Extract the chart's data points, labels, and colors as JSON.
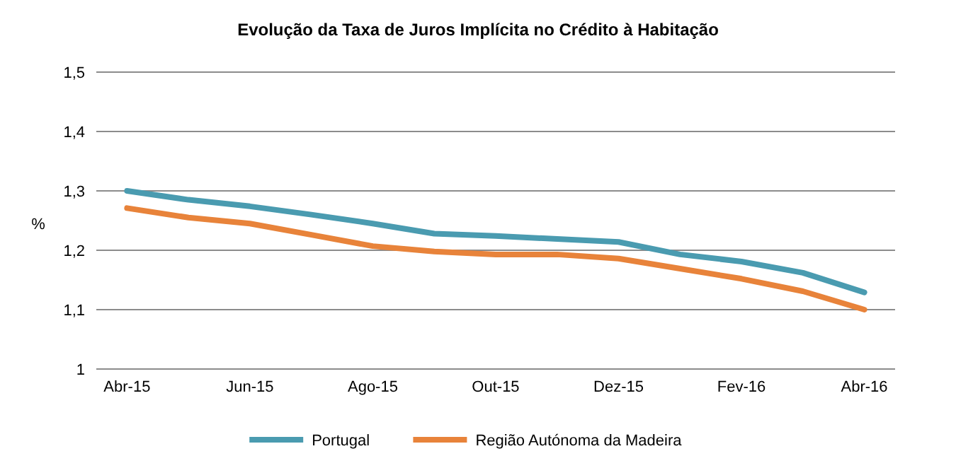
{
  "chart_data": {
    "type": "line",
    "title": "Evolução da Taxa de Juros Implícita no Crédito à Habitação",
    "ylabel": "%",
    "categories": [
      "Abr-15",
      null,
      "Jun-15",
      null,
      "Ago-15",
      null,
      "Out-15",
      null,
      "Dez-15",
      null,
      "Fev-16",
      null,
      "Abr-16"
    ],
    "series": [
      {
        "name": "Portugal",
        "color": "#4a9bb0",
        "values": [
          1.3,
          1.285,
          1.274,
          1.26,
          1.245,
          1.228,
          1.224,
          1.219,
          1.214,
          1.193,
          1.181,
          1.162,
          1.129
        ]
      },
      {
        "name": "Região Autónoma da Madeira",
        "color": "#e8833a",
        "values": [
          1.271,
          1.255,
          1.245,
          1.226,
          1.207,
          1.198,
          1.193,
          1.193,
          1.186,
          1.169,
          1.152,
          1.131,
          1.1
        ]
      }
    ],
    "ylim": [
      1,
      1.5
    ],
    "yticks": [
      1,
      {
        "value": 1.1,
        "label": "1,1"
      },
      {
        "value": 1.2,
        "label": "1,2"
      },
      {
        "value": 1.3,
        "label": "1,3"
      },
      {
        "value": 1.4,
        "label": "1,4"
      },
      {
        "value": 1.5,
        "label": "1,5"
      }
    ],
    "grid": "y",
    "legend": "bottom",
    "marker": "none",
    "line_style": "solid"
  }
}
